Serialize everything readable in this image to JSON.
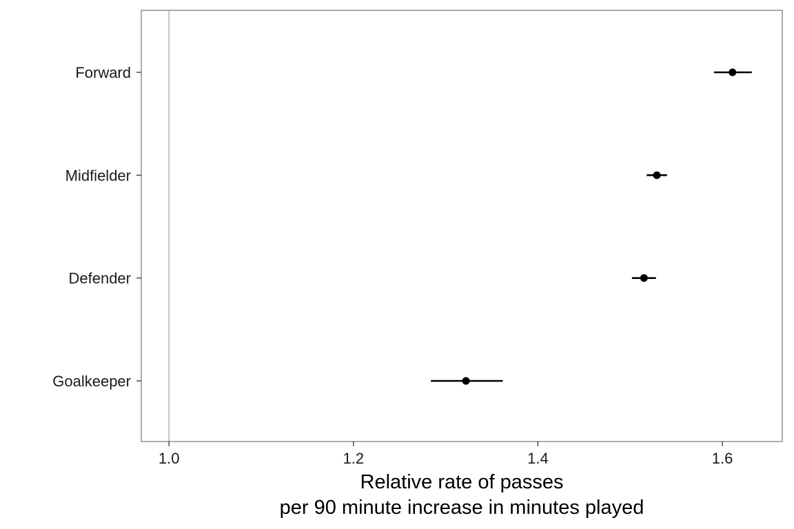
{
  "chart_data": {
    "type": "forest",
    "title": "",
    "xlabel": "Relative rate of passes",
    "xlabel_line2": "per 90 minute increase in minutes played",
    "ylabel": "",
    "xlim": [
      0.97,
      1.665
    ],
    "xticks": [
      1.0,
      1.2,
      1.4,
      1.6
    ],
    "xtick_labels": [
      "1.0",
      "1.2",
      "1.4",
      "1.6"
    ],
    "reference_line": 1.0,
    "categories": [
      "Forward",
      "Midfielder",
      "Defender",
      "Goalkeeper"
    ],
    "estimates": [
      1.611,
      1.529,
      1.515,
      1.322
    ],
    "lower": [
      1.591,
      1.518,
      1.502,
      1.284
    ],
    "upper": [
      1.632,
      1.54,
      1.528,
      1.362
    ],
    "grid": false,
    "legend": "none",
    "colors": {
      "point": "#000000",
      "error_bar": "#000000",
      "reference_line": "#c8c8c8",
      "panel_border": "#7f7f7f",
      "tick": "#333333"
    }
  }
}
